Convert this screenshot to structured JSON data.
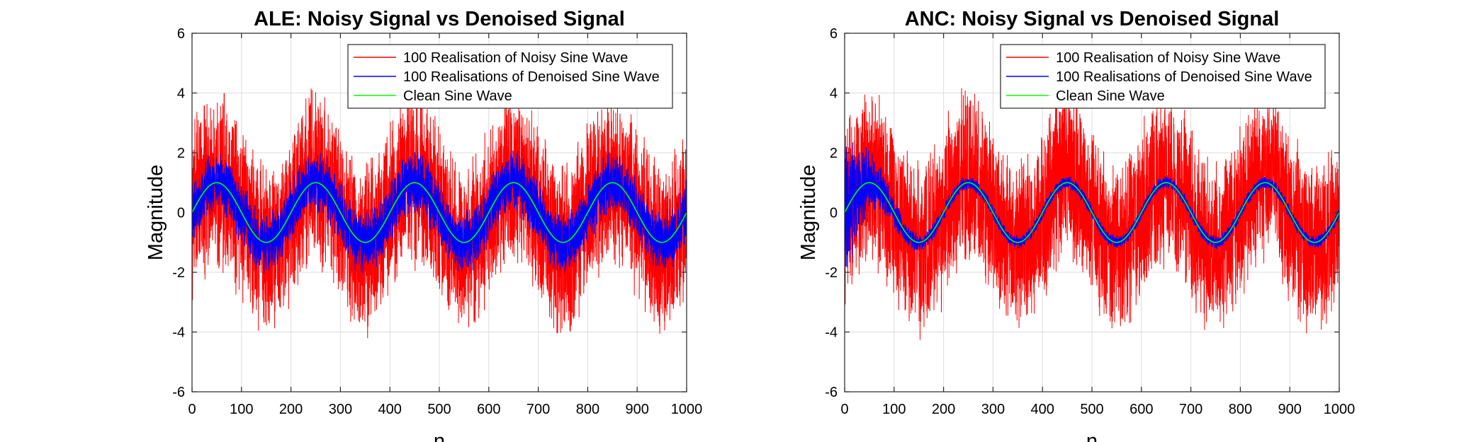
{
  "chart_data": [
    {
      "type": "line",
      "title": "ALE: Noisy Signal vs Denoised Signal",
      "xlabel": "n",
      "ylabel": "Magnitude",
      "xlim": [
        0,
        1000
      ],
      "ylim": [
        -6,
        6
      ],
      "xticks": [
        "0",
        "100",
        "200",
        "300",
        "400",
        "500",
        "600",
        "700",
        "800",
        "900",
        "1000"
      ],
      "yticks": [
        "-6",
        "-4",
        "-2",
        "0",
        "2",
        "4",
        "6"
      ],
      "grid": true,
      "legend_position": "top-right",
      "series": [
        {
          "name": "100 Realisation of Noisy Sine Wave",
          "color": "#ff0000",
          "kind": "noisy",
          "amplitude": 1,
          "period": 200,
          "envelope": [
            -4.4,
            4.4
          ]
        },
        {
          "name": "100 Realisations of Denoised Sine Wave",
          "color": "#0000ff",
          "kind": "denoised_ale",
          "amplitude": 1,
          "period": 200,
          "envelope": [
            -2.0,
            2.0
          ]
        },
        {
          "name": "Clean Sine Wave",
          "color": "#00ff00",
          "kind": "clean",
          "amplitude": 1,
          "period": 200
        }
      ]
    },
    {
      "type": "line",
      "title": "ANC: Noisy Signal vs Denoised Signal",
      "xlabel": "n",
      "ylabel": "Magnitude",
      "xlim": [
        0,
        1000
      ],
      "ylim": [
        -6,
        6
      ],
      "xticks": [
        "0",
        "100",
        "200",
        "300",
        "400",
        "500",
        "600",
        "700",
        "800",
        "900",
        "1000"
      ],
      "yticks": [
        "-6",
        "-4",
        "-2",
        "0",
        "2",
        "4",
        "6"
      ],
      "grid": true,
      "legend_position": "top-right",
      "series": [
        {
          "name": "100 Realisation of Noisy Sine Wave",
          "color": "#ff0000",
          "kind": "noisy",
          "amplitude": 1,
          "period": 200,
          "envelope": [
            -4.4,
            4.4
          ]
        },
        {
          "name": "100 Realisations of Denoised Sine Wave",
          "color": "#0000ff",
          "kind": "denoised_anc",
          "amplitude": 1,
          "period": 200,
          "envelope": [
            -3.5,
            3.5
          ]
        },
        {
          "name": "Clean Sine Wave",
          "color": "#00ff00",
          "kind": "clean",
          "amplitude": 1,
          "period": 200
        }
      ]
    }
  ]
}
